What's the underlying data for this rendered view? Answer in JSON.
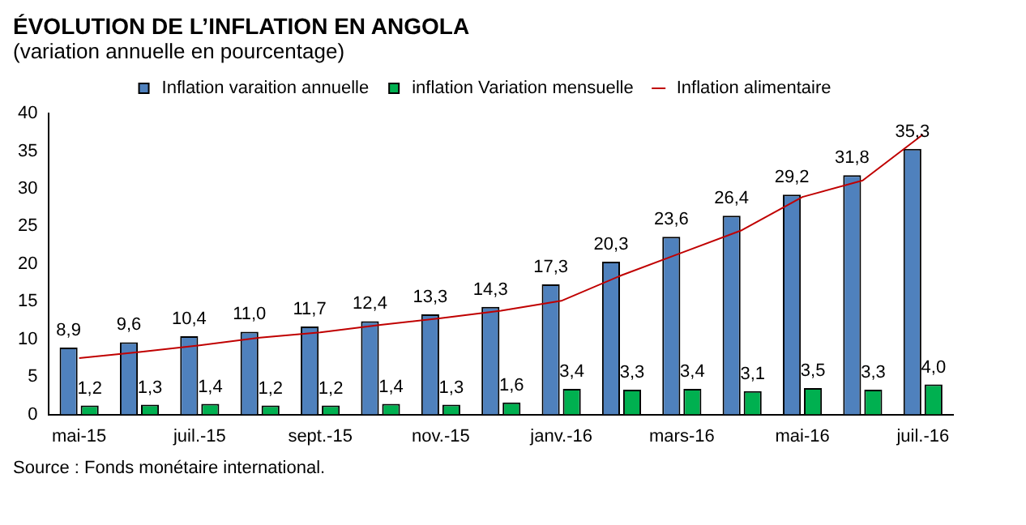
{
  "chart_data": {
    "type": "bar",
    "title": "ÉVOLUTION DE L’INFLATION EN ANGOLA",
    "subtitle": "(variation annuelle en pourcentage)",
    "categories": [
      "mai-15",
      null,
      "juil.-15",
      null,
      "sept.-15",
      null,
      "nov.-15",
      null,
      "janv.-16",
      null,
      "mars-16",
      null,
      "mai-16",
      null,
      "juil.-16"
    ],
    "series": [
      {
        "name": "Inflation varaition annuelle",
        "color": "#4f81bd",
        "values": [
          8.9,
          9.6,
          10.4,
          11.0,
          11.7,
          12.4,
          13.3,
          14.3,
          17.3,
          20.3,
          23.6,
          26.4,
          29.2,
          31.8,
          35.3
        ],
        "value_labels": [
          "8,9",
          "9,6",
          "10,4",
          "11,0",
          "11,7",
          "12,4",
          "13,3",
          "14,3",
          "17,3",
          "20,3",
          "23,6",
          "26,4",
          "29,2",
          "31,8",
          "35,3"
        ]
      },
      {
        "name": "inflation Variation mensuelle",
        "color": "#00b050",
        "values": [
          1.2,
          1.3,
          1.4,
          1.2,
          1.2,
          1.4,
          1.3,
          1.6,
          3.4,
          3.3,
          3.4,
          3.1,
          3.5,
          3.3,
          4.0
        ],
        "value_labels": [
          "1,2",
          "1,3",
          "1,4",
          "1,2",
          "1,2",
          "1,4",
          "1,3",
          "1,6",
          "3,4",
          "3,3",
          "3,4",
          "3,1",
          "3,5",
          "3,3",
          "4,0"
        ]
      },
      {
        "name": "Inflation alimentaire",
        "type": "line",
        "color": "#c00000",
        "values": [
          7.5,
          8.3,
          9.2,
          10.2,
          10.9,
          11.9,
          12.8,
          13.8,
          15.1,
          18.5,
          21.5,
          24.5,
          28.9,
          31.1,
          37.2
        ]
      }
    ],
    "ylim": [
      0,
      40
    ],
    "yticks": [
      0,
      5,
      10,
      15,
      20,
      25,
      30,
      35,
      40
    ],
    "grid": false,
    "legend": "top",
    "marker": "none",
    "annotations": [
      "Source : Fonds monétaire international."
    ]
  }
}
